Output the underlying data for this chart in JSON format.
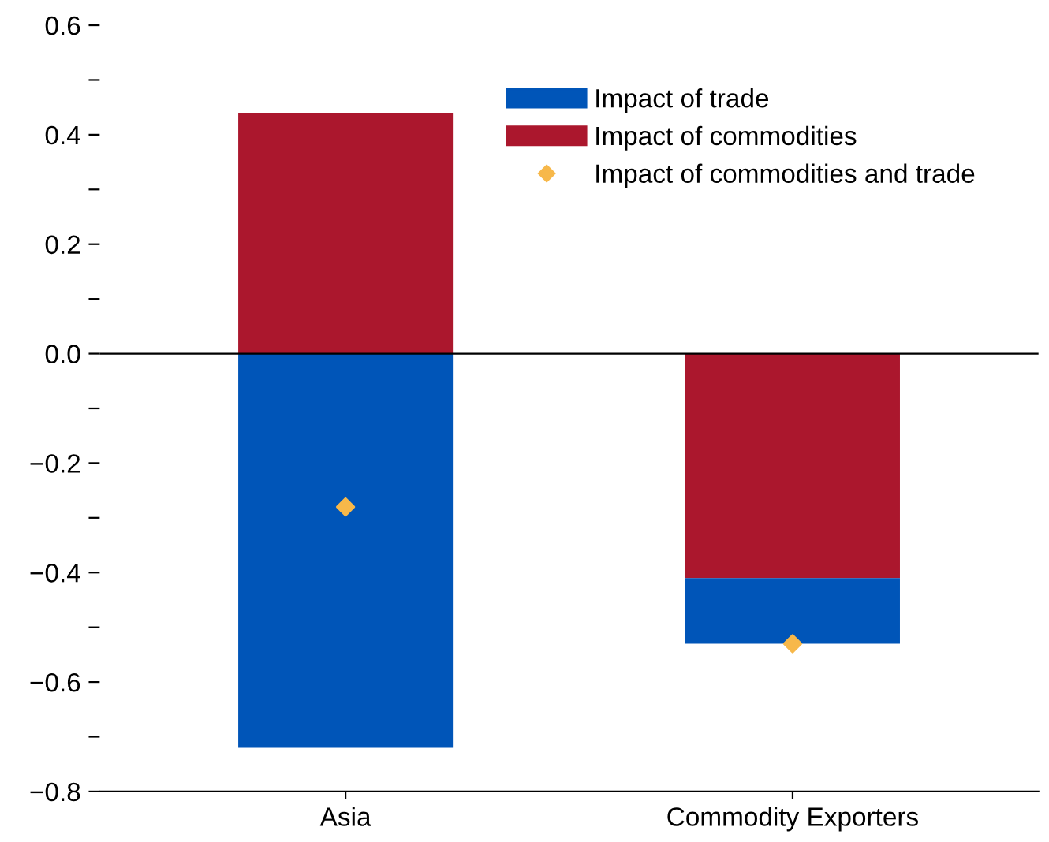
{
  "chart_data": {
    "type": "bar",
    "stacked": true,
    "categories": [
      "Asia",
      "Commodity Exporters"
    ],
    "series": [
      {
        "name": "Impact of commodities",
        "color": "#ab172d",
        "values": [
          0.44,
          -0.41
        ]
      },
      {
        "name": "Impact of trade",
        "color": "#0055b8",
        "values": [
          -0.72,
          -0.12
        ]
      },
      {
        "name": "Impact of commodities and trade",
        "color": "#f7b84a",
        "type": "scatter",
        "marker": "diamond",
        "x": [
          "Asia",
          "Commodity Exporters"
        ],
        "values": [
          -0.28,
          -0.53
        ]
      }
    ],
    "ylim": [
      -0.8,
      0.6
    ],
    "yticks": [
      {
        "value": -0.8,
        "label": "−0.8"
      },
      {
        "value": -0.7,
        "label": null
      },
      {
        "value": -0.6,
        "label": "−0.6"
      },
      {
        "value": -0.5,
        "label": null
      },
      {
        "value": -0.4,
        "label": "−0.4"
      },
      {
        "value": -0.3,
        "label": null
      },
      {
        "value": -0.2,
        "label": "−0.2"
      },
      {
        "value": -0.1,
        "label": null
      },
      {
        "value": 0,
        "label": "0.0"
      },
      {
        "value": 0.1,
        "label": null
      },
      {
        "value": 0.2,
        "label": "0.2"
      },
      {
        "value": 0.3,
        "label": null
      },
      {
        "value": 0.4,
        "label": "0.4"
      },
      {
        "value": 0.5,
        "label": null
      },
      {
        "value": 0.6,
        "label": "0.6"
      }
    ],
    "ref_lines": [
      {
        "axis": "y",
        "value": 0,
        "color": "#000000"
      }
    ],
    "legend": "top right",
    "grid": false
  }
}
